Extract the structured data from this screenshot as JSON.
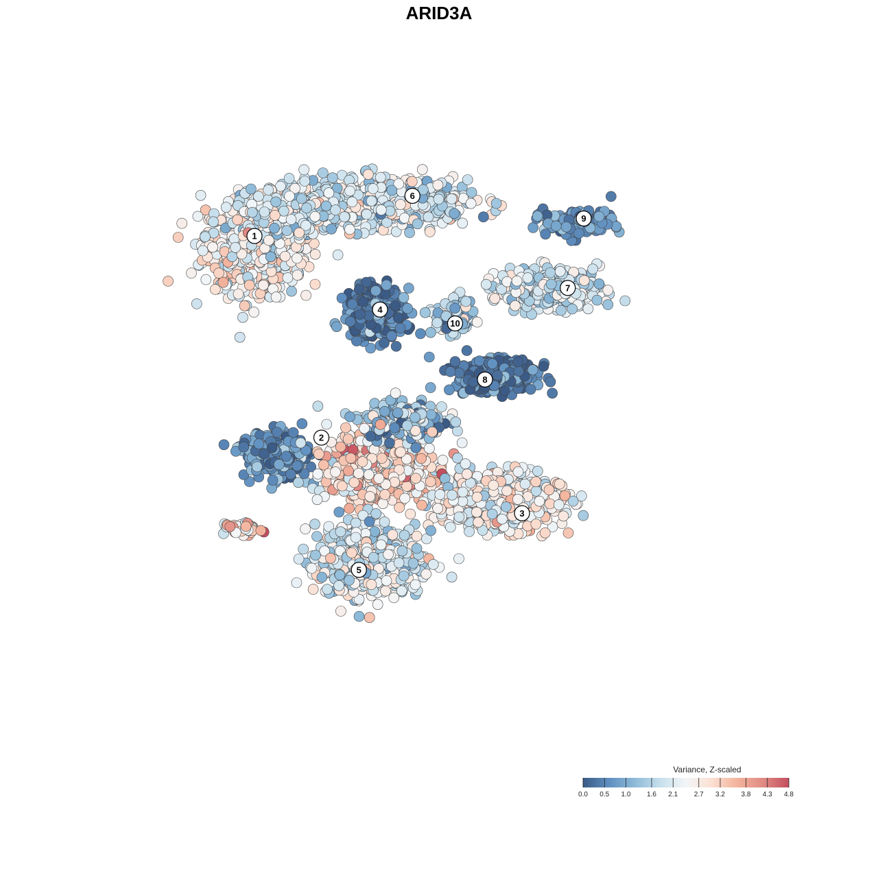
{
  "chart_data": {
    "type": "scatter",
    "title": "ARID3A",
    "xlabel": "",
    "ylabel": "",
    "grid": false,
    "axes_visible": false,
    "legend": {
      "title": "Variance, Z-scaled",
      "position": "bottom-right",
      "ticks": [
        "0.0",
        "0.5",
        "1.0",
        "1.6",
        "2.1",
        "2.7",
        "3.2",
        "3.8",
        "4.3",
        "4.8"
      ],
      "tick_values": [
        0.0,
        0.5,
        1.0,
        1.6,
        2.1,
        2.7,
        3.2,
        3.8,
        4.3,
        4.8
      ],
      "domain": [
        0.0,
        4.8
      ]
    },
    "colorscale": [
      "#3b5a85",
      "#5f8fc0",
      "#8dbad8",
      "#c7dfec",
      "#f3f6f8",
      "#fbe0d3",
      "#f3b39c",
      "#e08a84",
      "#c44e5e"
    ],
    "point_stroke": "#444444",
    "clusters": [
      {
        "label": "1",
        "x": 0.0,
        "y": 0.0
      },
      {
        "label": "2",
        "x": 13.0,
        "y": -39.2
      },
      {
        "label": "3",
        "x": 52.0,
        "y": -53.9
      },
      {
        "label": "4",
        "x": 24.4,
        "y": -14.3
      },
      {
        "label": "5",
        "x": 20.3,
        "y": -64.9
      },
      {
        "label": "6",
        "x": 30.7,
        "y": 7.8
      },
      {
        "label": "7",
        "x": 60.9,
        "y": -10.1
      },
      {
        "label": "8",
        "x": 44.8,
        "y": -27.9
      },
      {
        "label": "9",
        "x": 64.0,
        "y": 3.4
      },
      {
        "label": "10",
        "x": 39.0,
        "y": -17.0
      }
    ],
    "regions": [
      {
        "cluster": "1",
        "x": 0.0,
        "y": -2.0,
        "sx": 9.0,
        "sy": 8.0,
        "n": 700,
        "v": 2.4,
        "vs": 0.55
      },
      {
        "cluster": "6",
        "x": 26.0,
        "y": 6.5,
        "sx": 14.0,
        "sy": 4.0,
        "n": 650,
        "v": 2.0,
        "vs": 0.55
      },
      {
        "cluster": "1",
        "x": 8.0,
        "y": 5.0,
        "sx": 8.0,
        "sy": 4.0,
        "n": 320,
        "v": 2.1,
        "vs": 0.6
      },
      {
        "cluster": "4",
        "x": 23.5,
        "y": -15.0,
        "sx": 5.0,
        "sy": 4.2,
        "n": 380,
        "v": 0.35,
        "vs": 0.5
      },
      {
        "cluster": "10",
        "x": 38.5,
        "y": -15.5,
        "sx": 3.2,
        "sy": 3.0,
        "n": 130,
        "v": 1.3,
        "vs": 0.7
      },
      {
        "cluster": "9",
        "x": 63.0,
        "y": 2.5,
        "sx": 6.0,
        "sy": 2.2,
        "n": 170,
        "v": 0.7,
        "vs": 0.35
      },
      {
        "cluster": "7",
        "x": 57.0,
        "y": -10.0,
        "sx": 9.0,
        "sy": 3.5,
        "n": 330,
        "v": 1.9,
        "vs": 0.5
      },
      {
        "cluster": "8",
        "x": 47.0,
        "y": -27.0,
        "sx": 7.0,
        "sy": 3.0,
        "n": 330,
        "v": 0.4,
        "vs": 0.4
      },
      {
        "cluster": "2",
        "x": 4.0,
        "y": -42.5,
        "sx": 6.0,
        "sy": 4.0,
        "n": 280,
        "v": 0.6,
        "vs": 0.5
      },
      {
        "cluster": "2",
        "x": 24.0,
        "y": -44.5,
        "sx": 9.0,
        "sy": 6.5,
        "n": 620,
        "v": 2.9,
        "vs": 0.65
      },
      {
        "cluster": "3",
        "x": 47.0,
        "y": -51.5,
        "sx": 11.0,
        "sy": 5.0,
        "n": 650,
        "v": 2.45,
        "vs": 0.55
      },
      {
        "cluster": "5",
        "x": 22.0,
        "y": -63.0,
        "sx": 9.0,
        "sy": 6.0,
        "n": 620,
        "v": 2.1,
        "vs": 0.6
      },
      {
        "cluster": "2",
        "x": 29.0,
        "y": -36.0,
        "sx": 7.0,
        "sy": 3.0,
        "n": 240,
        "v": 1.4,
        "vs": 0.9
      },
      {
        "cluster": "2",
        "x": -2.5,
        "y": -57.0,
        "sx": 3.5,
        "sy": 1.5,
        "n": 45,
        "v": 3.0,
        "vs": 0.8
      }
    ]
  }
}
